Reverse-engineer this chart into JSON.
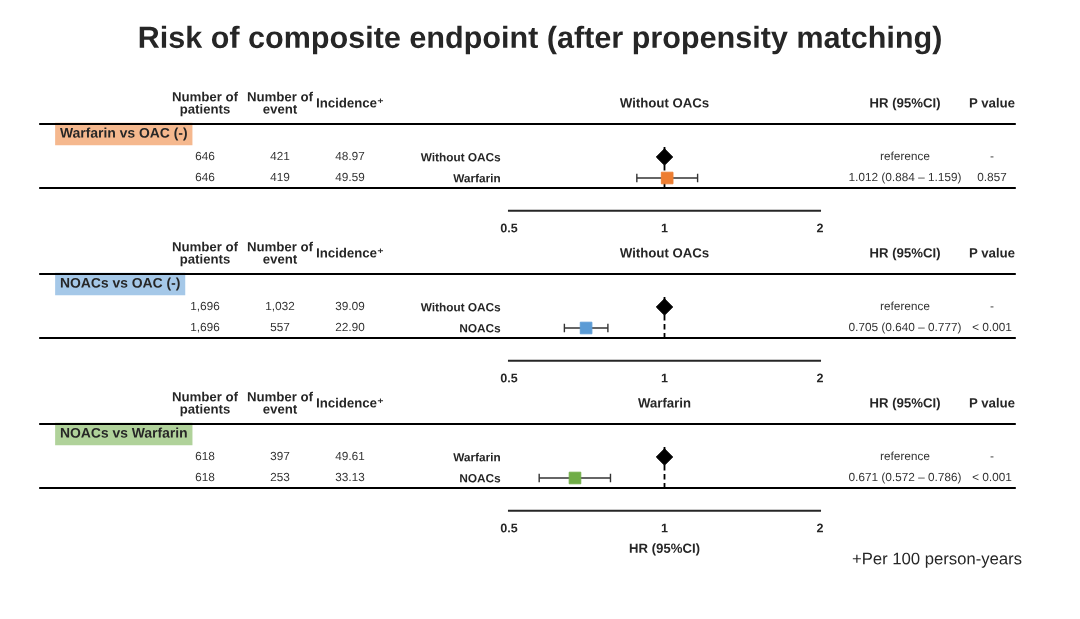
{
  "chart_data": [
    {
      "type": "scatter",
      "title": "Risk of composite endpoint (after propensity matching)",
      "ylabel": "Warfarin vs OAC (-)",
      "orientation": "horizontal",
      "categories": [
        "Without OACs",
        "Warfarin"
      ],
      "series": [
        {
          "color": "#000000",
          "marker": "diamond",
          "values": [
            1,
            null
          ]
        },
        {
          "color": "#ed7d31",
          "marker": "square",
          "values": [
            null,
            1.012
          ],
          "errors": [
            null,
            [
              0.884,
              1.159
            ]
          ]
        }
      ],
      "log": "x",
      "xlim": [
        0.5,
        2
      ],
      "xticks": [
        0.5,
        1,
        2
      ],
      "grid": false,
      "ref_lines": [
        {
          "axis": "x",
          "value": 1,
          "color": "#000000",
          "line_style": "dashed"
        }
      ],
      "annotations": [
        "Number of patients",
        "Number of event",
        "Incidence⁺",
        "Without OACs",
        "HR (95%CI)",
        "P value",
        "646",
        "421",
        "48.97",
        "reference",
        "-",
        "646",
        "419",
        "49.59",
        "1.012 (0.884 – 1.159)",
        "0.857"
      ]
    },
    {
      "type": "scatter",
      "ylabel": "NOACs vs OAC (-)",
      "orientation": "horizontal",
      "categories": [
        "Without OACs",
        "NOACs"
      ],
      "series": [
        {
          "color": "#000000",
          "marker": "diamond",
          "values": [
            1,
            null
          ]
        },
        {
          "color": "#5b9bd5",
          "marker": "square",
          "values": [
            null,
            0.705
          ],
          "errors": [
            null,
            [
              0.64,
              0.777
            ]
          ]
        }
      ],
      "log": "x",
      "xlim": [
        0.5,
        2
      ],
      "xticks": [
        0.5,
        1,
        2
      ],
      "grid": false,
      "ref_lines": [
        {
          "axis": "x",
          "value": 1,
          "color": "#000000",
          "line_style": "dashed"
        }
      ],
      "annotations": [
        "Number of patients",
        "Number of event",
        "Incidence⁺",
        "Without OACs",
        "HR (95%CI)",
        "P value",
        "1,696",
        "1,032",
        "39.09",
        "reference",
        "-",
        "1,696",
        "557",
        "22.90",
        "0.705 (0.640 – 0.777)",
        "< 0.001"
      ]
    },
    {
      "type": "scatter",
      "ylabel": "NOACs vs Warfarin",
      "orientation": "horizontal",
      "categories": [
        "Warfarin",
        "NOACs"
      ],
      "xlabel": "HR (95%CI)",
      "series": [
        {
          "color": "#000000",
          "marker": "diamond",
          "values": [
            1,
            null
          ]
        },
        {
          "color": "#70ad47",
          "marker": "square",
          "values": [
            null,
            0.671
          ],
          "errors": [
            null,
            [
              0.572,
              0.786
            ]
          ]
        }
      ],
      "log": "x",
      "xlim": [
        0.5,
        2
      ],
      "xticks": [
        0.5,
        1,
        2
      ],
      "grid": false,
      "ref_lines": [
        {
          "axis": "x",
          "value": 1,
          "color": "#000000",
          "line_style": "dashed"
        }
      ],
      "annotations": [
        "Number of patients",
        "Number of event",
        "Incidence⁺",
        "Warfarin",
        "HR (95%CI)",
        "P value",
        "618",
        "397",
        "49.61",
        "reference",
        "-",
        "618",
        "253",
        "33.13",
        "0.671 (0.572 – 0.786)",
        "< 0.001",
        "+Per 100 person-years"
      ]
    }
  ]
}
